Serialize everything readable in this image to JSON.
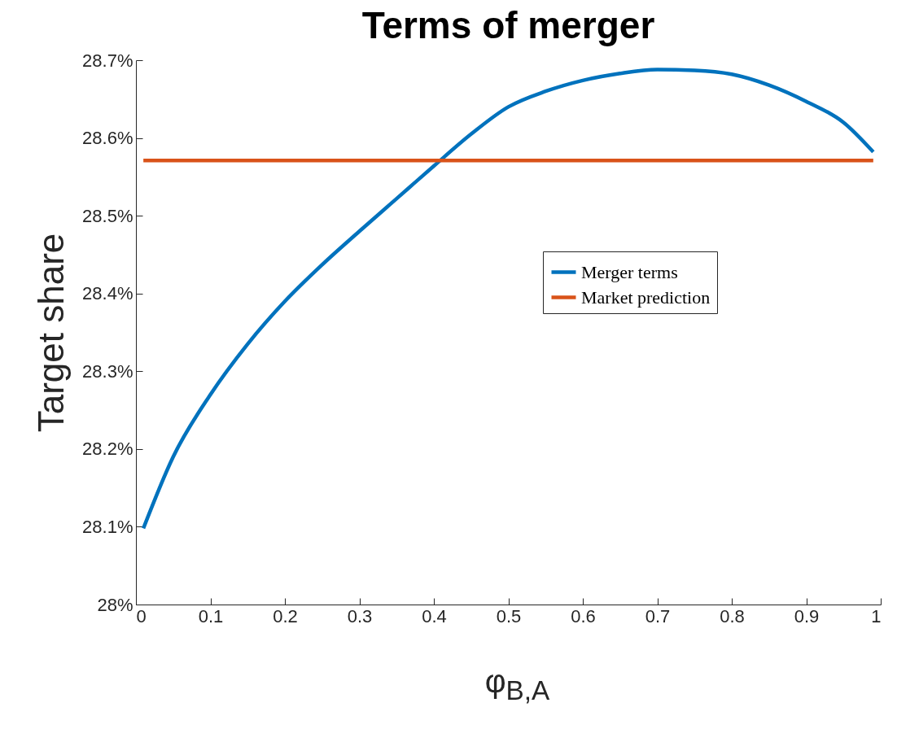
{
  "chart_data": {
    "type": "line",
    "title": "Terms of merger",
    "xlabel": "φ$_{B,A}$",
    "ylabel": "Target share",
    "xlim": [
      0,
      1
    ],
    "xticks": [
      0,
      0.1,
      0.2,
      0.3,
      0.4,
      0.5,
      0.6,
      0.7,
      0.8,
      0.9,
      1
    ],
    "ylim": [
      28,
      28.7
    ],
    "yticks": [
      {
        "value": 28,
        "label": "28%"
      },
      {
        "value": 28.1,
        "label": "28.1%"
      },
      {
        "value": 28.2,
        "label": "28.2%"
      },
      {
        "value": 28.3,
        "label": "28.3%"
      },
      {
        "value": 28.4,
        "label": "28.4%"
      },
      {
        "value": 28.5,
        "label": "28.5%"
      },
      {
        "value": 28.6,
        "label": "28.6%"
      },
      {
        "value": 28.7,
        "label": "28.7%"
      }
    ],
    "grid": false,
    "legend": "right",
    "series": [
      {
        "name": "Merger terms",
        "color": "#0072bd",
        "x": [
          0.01,
          0.05,
          0.1,
          0.15,
          0.2,
          0.25,
          0.3,
          0.35,
          0.4,
          0.45,
          0.5,
          0.55,
          0.6,
          0.65,
          0.7,
          0.75,
          0.8,
          0.85,
          0.9,
          0.95,
          0.99
        ],
        "values": [
          28.098,
          28.19,
          28.27,
          28.335,
          28.39,
          28.437,
          28.48,
          28.522,
          28.564,
          28.605,
          28.64,
          28.66,
          28.674,
          28.683,
          28.688,
          28.687,
          28.682,
          28.668,
          28.647,
          28.62,
          28.582
        ]
      },
      {
        "name": "Market prediction",
        "color": "#d95319",
        "x": [
          0.01,
          0.99
        ],
        "values": [
          28.571,
          28.571
        ]
      }
    ]
  }
}
